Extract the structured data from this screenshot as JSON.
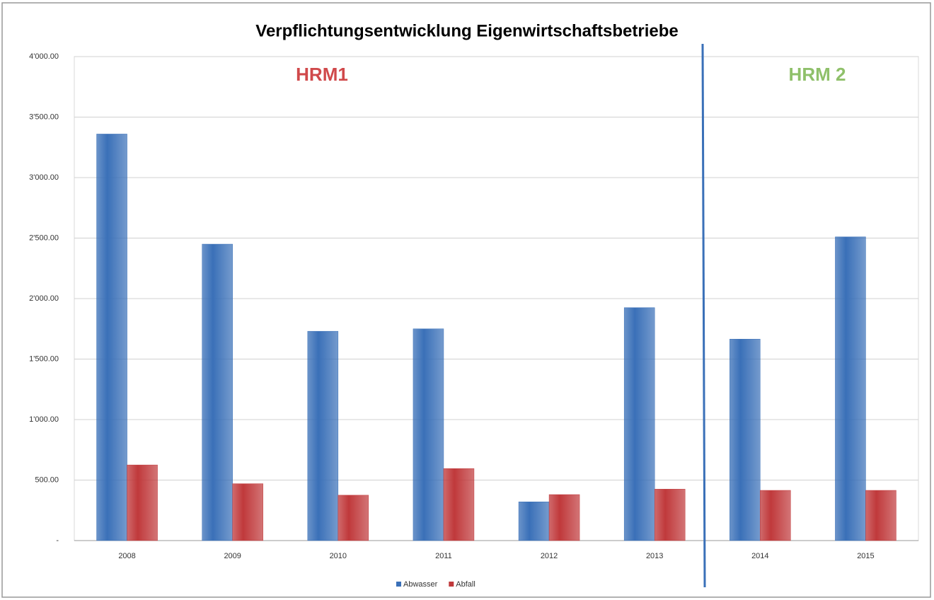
{
  "chart_data": {
    "type": "bar",
    "title": "Verpflichtungsentwicklung Eigenwirtschaftsbetriebe",
    "categories": [
      "2008",
      "2009",
      "2010",
      "2011",
      "2012",
      "2013",
      "2014",
      "2015"
    ],
    "series": [
      {
        "name": "Abwasser",
        "color": "#3a70b8",
        "values": [
          3360,
          2450,
          1730,
          1750,
          320,
          1925,
          1665,
          2510
        ]
      },
      {
        "name": "Abfall",
        "color": "#c0393b",
        "values": [
          625,
          470,
          375,
          595,
          380,
          425,
          415,
          415
        ]
      }
    ],
    "ylim": [
      0,
      4000
    ],
    "yticks": [
      {
        "value": 0,
        "label": "-"
      },
      {
        "value": 500,
        "label": "500.00"
      },
      {
        "value": 1000,
        "label": "1'000.00"
      },
      {
        "value": 1500,
        "label": "1'500.00"
      },
      {
        "value": 2000,
        "label": "2'000.00"
      },
      {
        "value": 2500,
        "label": "2'500.00"
      },
      {
        "value": 3000,
        "label": "3'000.00"
      },
      {
        "value": 3500,
        "label": "3'500.00"
      },
      {
        "value": 4000,
        "label": "4'000.00"
      }
    ],
    "grid": true,
    "legend": "bottom",
    "annotations": [
      {
        "text": "HRM1",
        "color": "#d0494b"
      },
      {
        "text": "HRM 2",
        "color": "#8fc06a"
      }
    ]
  }
}
